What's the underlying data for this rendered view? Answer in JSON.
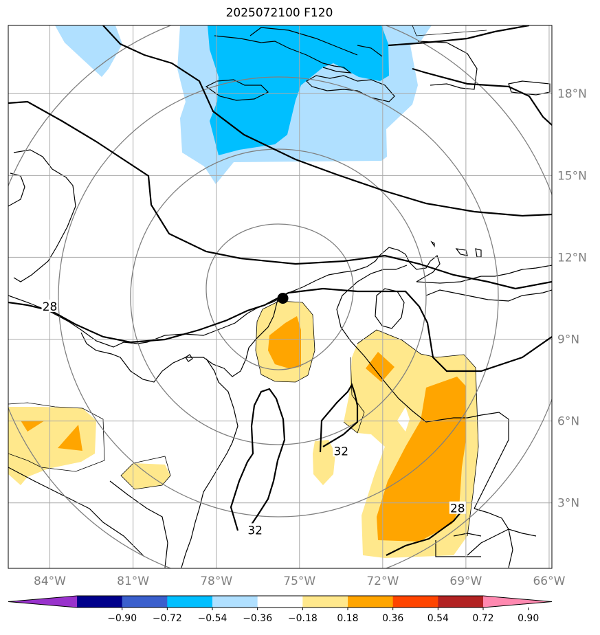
{
  "chart_data": {
    "type": "heatmap",
    "title": "2025072100 F120",
    "map": {
      "lon_range": [
        -85.5,
        -65.9
      ],
      "lat_range": [
        0.6,
        20.5
      ],
      "grid": true
    },
    "lon_ticks": [
      {
        "value": -84,
        "label": "84°W"
      },
      {
        "value": -81,
        "label": "81°W"
      },
      {
        "value": -78,
        "label": "78°W"
      },
      {
        "value": -75,
        "label": "75°W"
      },
      {
        "value": -72,
        "label": "72°W"
      },
      {
        "value": -69,
        "label": "69°W"
      },
      {
        "value": -66,
        "label": "66°W"
      }
    ],
    "lat_ticks": [
      {
        "value": 3,
        "label": "3°N"
      },
      {
        "value": 6,
        "label": "6°N"
      },
      {
        "value": 9,
        "label": "9°N"
      },
      {
        "value": 12,
        "label": "12°N"
      },
      {
        "value": 15,
        "label": "15°N"
      },
      {
        "value": 18,
        "label": "18°N"
      }
    ],
    "colorbar": {
      "levels": [
        "−0.90",
        "−0.72",
        "−0.54",
        "−0.36",
        "−0.18",
        "0.18",
        "0.36",
        "0.54",
        "0.72",
        "0.90"
      ],
      "colors": [
        "#9932cc",
        "#00008b",
        "#3a5fcd",
        "#00bfff",
        "#b0e0ff",
        "#ffffff",
        "#ffe88c",
        "#ffa500",
        "#ff4500",
        "#b22222",
        "#ff89b0"
      ],
      "extend": "both"
    },
    "contour_labels": [
      {
        "text": "28",
        "lon": -84.0,
        "lat": 10.2
      },
      {
        "text": "32",
        "lon": -73.5,
        "lat": 4.9
      },
      {
        "text": "32",
        "lon": -76.6,
        "lat": 2.0
      },
      {
        "text": "28",
        "lon": -69.3,
        "lat": 2.8
      }
    ],
    "center_marker": {
      "lon": -75.6,
      "lat": 10.5
    },
    "range_rings_count": 4
  },
  "colors": {
    "light_blue": "#b0e0ff",
    "blue": "#00bfff",
    "light_yellow": "#ffe88c",
    "orange": "#ffa500",
    "grid": "#a9a9a9",
    "tick_label": "#808080"
  }
}
